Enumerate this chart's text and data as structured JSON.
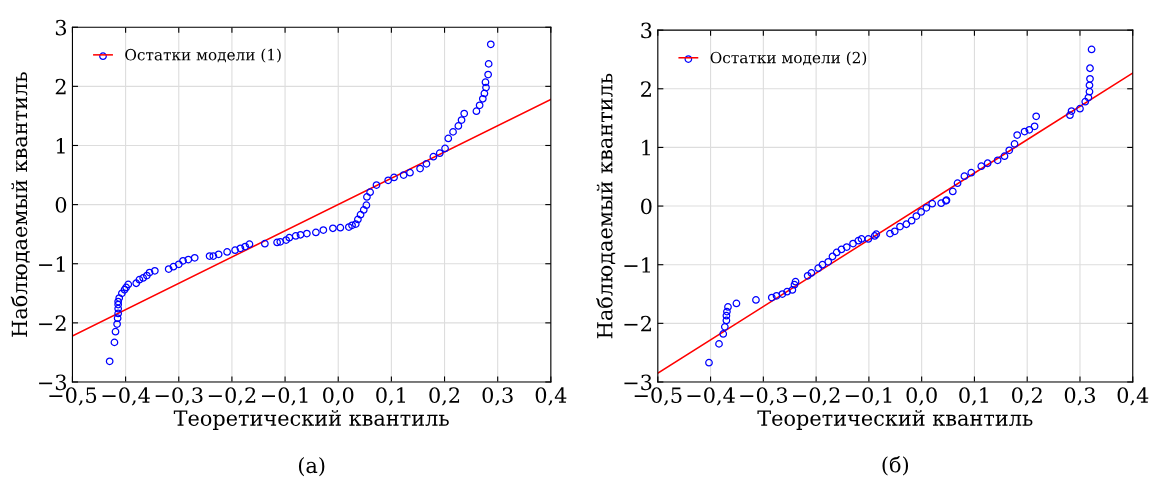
{
  "chart_data": [
    {
      "type": "scatter",
      "xlabel": "Теоретический квантиль",
      "ylabel": "Наблюдаемый квантиль",
      "annotations": [
        "(а)"
      ],
      "grid": true,
      "legend": "top left",
      "xlim": [
        -0.5,
        0.4
      ],
      "ylim": [
        -3,
        3
      ],
      "xticks": [
        {
          "value": -0.5,
          "label": "−0,5"
        },
        {
          "value": -0.4,
          "label": "−0,4"
        },
        {
          "value": -0.3,
          "label": "−0,3"
        },
        {
          "value": -0.2,
          "label": "−0,2"
        },
        {
          "value": -0.1,
          "label": "−0,1"
        },
        {
          "value": 0,
          "label": "0,0"
        },
        {
          "value": 0.1,
          "label": "0,1"
        },
        {
          "value": 0.2,
          "label": "0,2"
        },
        {
          "value": 0.3,
          "label": "0,3"
        },
        {
          "value": 0.4,
          "label": "0,4"
        }
      ],
      "yticks": [
        {
          "value": -3,
          "label": "−3"
        },
        {
          "value": -2,
          "label": "−2"
        },
        {
          "value": -1,
          "label": "−1"
        },
        0,
        1,
        2,
        3
      ],
      "series": [
        {
          "name": "Остатки модели (1)",
          "marker": "circle",
          "color": "#0000ff",
          "x": [
            -0.43,
            -0.421,
            -0.419,
            -0.416,
            -0.415,
            -0.414,
            -0.414,
            -0.414,
            -0.414,
            -0.412,
            -0.407,
            -0.402,
            -0.399,
            -0.395,
            -0.38,
            -0.374,
            -0.367,
            -0.36,
            -0.355,
            -0.345,
            -0.319,
            -0.31,
            -0.3,
            -0.292,
            -0.282,
            -0.27,
            -0.242,
            -0.235,
            -0.225,
            -0.209,
            -0.194,
            -0.184,
            -0.175,
            -0.167,
            -0.138,
            -0.115,
            -0.109,
            -0.098,
            -0.092,
            -0.08,
            -0.071,
            -0.059,
            -0.042,
            -0.028,
            -0.01,
            0.004,
            0.02,
            0.026,
            0.033,
            0.037,
            0.042,
            0.048,
            0.053,
            0.054,
            0.06,
            0.072,
            0.094,
            0.105,
            0.123,
            0.135,
            0.154,
            0.166,
            0.179,
            0.191,
            0.201,
            0.207,
            0.216,
            0.226,
            0.232,
            0.237,
            0.26,
            0.266,
            0.272,
            0.275,
            0.278,
            0.277,
            0.282,
            0.283,
            0.287
          ],
          "values": [
            -2.65,
            -2.33,
            -2.15,
            -2.02,
            -1.92,
            -1.84,
            -1.76,
            -1.69,
            -1.64,
            -1.58,
            -1.5,
            -1.44,
            -1.4,
            -1.35,
            -1.33,
            -1.27,
            -1.24,
            -1.2,
            -1.15,
            -1.12,
            -1.09,
            -1.05,
            -1.01,
            -0.95,
            -0.93,
            -0.9,
            -0.87,
            -0.87,
            -0.84,
            -0.8,
            -0.77,
            -0.74,
            -0.71,
            -0.67,
            -0.66,
            -0.64,
            -0.63,
            -0.6,
            -0.56,
            -0.53,
            -0.51,
            -0.49,
            -0.47,
            -0.43,
            -0.4,
            -0.39,
            -0.38,
            -0.35,
            -0.33,
            -0.25,
            -0.17,
            -0.09,
            -0.01,
            0.13,
            0.21,
            0.33,
            0.41,
            0.46,
            0.5,
            0.54,
            0.61,
            0.69,
            0.81,
            0.87,
            0.95,
            1.12,
            1.23,
            1.33,
            1.43,
            1.54,
            1.58,
            1.68,
            1.79,
            1.88,
            1.98,
            2.07,
            2.2,
            2.38,
            2.71
          ]
        },
        {
          "type": "line",
          "color": "#ff0000",
          "x": [
            -0.5,
            0.4
          ],
          "values": [
            -2.22,
            1.78
          ]
        }
      ]
    },
    {
      "type": "scatter",
      "xlabel": "Теоретический квантиль",
      "ylabel": "Наблюдаемый квантиль",
      "annotations": [
        "(б)"
      ],
      "grid": true,
      "legend": "top left",
      "xlim": [
        -0.5,
        0.4
      ],
      "ylim": [
        -3,
        3
      ],
      "xticks": [
        {
          "value": -0.5,
          "label": "−0,5"
        },
        {
          "value": -0.4,
          "label": "−0,4"
        },
        {
          "value": -0.3,
          "label": "−0,3"
        },
        {
          "value": -0.2,
          "label": "−0,2"
        },
        {
          "value": -0.1,
          "label": "−0,1"
        },
        {
          "value": 0,
          "label": "0,0"
        },
        {
          "value": 0.1,
          "label": "0,1"
        },
        {
          "value": 0.2,
          "label": "0,2"
        },
        {
          "value": 0.3,
          "label": "0,3"
        },
        {
          "value": 0.4,
          "label": "0,4"
        }
      ],
      "yticks": [
        {
          "value": -3,
          "label": "−3"
        },
        {
          "value": -2,
          "label": "−2"
        },
        {
          "value": -1,
          "label": "−1"
        },
        0,
        1,
        2,
        3
      ],
      "series": [
        {
          "name": "Остатки модели (2)",
          "marker": "circle",
          "color": "#0000ff",
          "x": [
            -0.403,
            -0.384,
            -0.376,
            -0.373,
            -0.37,
            -0.37,
            -0.369,
            -0.367,
            -0.351,
            -0.314,
            -0.284,
            -0.275,
            -0.264,
            -0.255,
            -0.245,
            -0.241,
            -0.239,
            -0.216,
            -0.209,
            -0.196,
            -0.188,
            -0.177,
            -0.169,
            -0.161,
            -0.152,
            -0.142,
            -0.13,
            -0.12,
            -0.114,
            -0.101,
            -0.089,
            -0.086,
            -0.06,
            -0.051,
            -0.041,
            -0.029,
            -0.019,
            -0.01,
            -0.001,
            0.009,
            0.02,
            0.037,
            0.046,
            0.047,
            0.059,
            0.068,
            0.081,
            0.094,
            0.113,
            0.125,
            0.144,
            0.157,
            0.166,
            0.176,
            0.181,
            0.195,
            0.204,
            0.214,
            0.217,
            0.281,
            0.284,
            0.3,
            0.31,
            0.316,
            0.318,
            0.318,
            0.319,
            0.319,
            0.322
          ],
          "values": [
            -2.67,
            -2.35,
            -2.18,
            -2.06,
            -1.95,
            -1.87,
            -1.8,
            -1.72,
            -1.66,
            -1.6,
            -1.56,
            -1.53,
            -1.5,
            -1.46,
            -1.43,
            -1.34,
            -1.29,
            -1.19,
            -1.14,
            -1.06,
            -1.0,
            -0.95,
            -0.86,
            -0.79,
            -0.74,
            -0.7,
            -0.64,
            -0.59,
            -0.56,
            -0.56,
            -0.51,
            -0.48,
            -0.47,
            -0.43,
            -0.35,
            -0.31,
            -0.25,
            -0.17,
            -0.1,
            -0.03,
            0.04,
            0.05,
            0.09,
            0.1,
            0.25,
            0.39,
            0.51,
            0.57,
            0.68,
            0.73,
            0.78,
            0.85,
            0.95,
            1.06,
            1.21,
            1.27,
            1.3,
            1.36,
            1.53,
            1.55,
            1.62,
            1.66,
            1.78,
            1.85,
            1.95,
            2.06,
            2.17,
            2.35,
            2.67
          ]
        },
        {
          "type": "line",
          "color": "#ff0000",
          "x": [
            -0.5,
            0.4
          ],
          "values": [
            -2.85,
            2.27
          ]
        }
      ]
    }
  ]
}
